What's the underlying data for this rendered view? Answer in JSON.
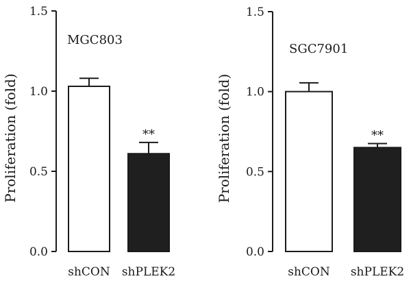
{
  "chart_data": [
    {
      "type": "bar",
      "title": "MGC803",
      "xlabel": "",
      "ylabel": "Proliferation (fold)",
      "ylim": [
        0,
        1.5
      ],
      "yticks": [
        0.0,
        0.5,
        1.0,
        1.5
      ],
      "ytick_labels": [
        "0.0",
        "0.5",
        "1.0",
        "1.5"
      ],
      "categories": [
        "shCON",
        "shPLEK2"
      ],
      "values": [
        1.03,
        0.61
      ],
      "error": [
        0.05,
        0.07
      ],
      "fill": [
        "#ffffff",
        "#1f1f1f"
      ],
      "annotations": [
        "",
        "**"
      ],
      "grid": false
    },
    {
      "type": "bar",
      "title": "SGC7901",
      "xlabel": "",
      "ylabel": "Proliferation (fold)",
      "ylim": [
        0,
        1.5
      ],
      "yticks": [
        0.0,
        0.5,
        1.0,
        1.5
      ],
      "ytick_labels": [
        "0.0",
        "0.5",
        "1.0",
        "1.5"
      ],
      "categories": [
        "shCON",
        "shPLEK2"
      ],
      "values": [
        1.0,
        0.65
      ],
      "error": [
        0.055,
        0.025
      ],
      "fill": [
        "#ffffff",
        "#1f1f1f"
      ],
      "annotations": [
        "",
        "**"
      ],
      "grid": false
    }
  ]
}
